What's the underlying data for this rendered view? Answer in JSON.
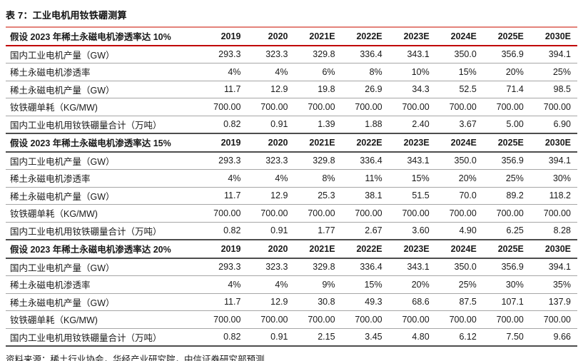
{
  "title": "表 7：工业电机用钕铁硼测算",
  "source": "资料来源：稀土行业协会，华经产业研究院，中信证券研究部预测",
  "columns": [
    "2019",
    "2020",
    "2021E",
    "2022E",
    "2023E",
    "2024E",
    "2025E",
    "2030E"
  ],
  "sections": [
    {
      "header": "假设 2023 年稀土永磁电机渗透率达 10%",
      "rows": [
        {
          "label": "国内工业电机产量（GW）",
          "values": [
            "293.3",
            "323.3",
            "329.8",
            "336.4",
            "343.1",
            "350.0",
            "356.9",
            "394.1"
          ]
        },
        {
          "label": "稀土永磁电机渗透率",
          "values": [
            "4%",
            "4%",
            "6%",
            "8%",
            "10%",
            "15%",
            "20%",
            "25%"
          ]
        },
        {
          "label": "稀土永磁电机产量（GW）",
          "values": [
            "11.7",
            "12.9",
            "19.8",
            "26.9",
            "34.3",
            "52.5",
            "71.4",
            "98.5"
          ]
        },
        {
          "label": "钕铁硼单耗（KG/MW)",
          "values": [
            "700.00",
            "700.00",
            "700.00",
            "700.00",
            "700.00",
            "700.00",
            "700.00",
            "700.00"
          ]
        },
        {
          "label": "国内工业电机用钕铁硼量合计（万吨）",
          "values": [
            "0.82",
            "0.91",
            "1.39",
            "1.88",
            "2.40",
            "3.67",
            "5.00",
            "6.90"
          ]
        }
      ]
    },
    {
      "header": "假设 2023 年稀土永磁电机渗透率达 15%",
      "rows": [
        {
          "label": "国内工业电机产量（GW）",
          "values": [
            "293.3",
            "323.3",
            "329.8",
            "336.4",
            "343.1",
            "350.0",
            "356.9",
            "394.1"
          ]
        },
        {
          "label": "稀土永磁电机渗透率",
          "values": [
            "4%",
            "4%",
            "8%",
            "11%",
            "15%",
            "20%",
            "25%",
            "30%"
          ]
        },
        {
          "label": "稀土永磁电机产量（GW）",
          "values": [
            "11.7",
            "12.9",
            "25.3",
            "38.1",
            "51.5",
            "70.0",
            "89.2",
            "118.2"
          ]
        },
        {
          "label": "钕铁硼单耗（KG/MW)",
          "values": [
            "700.00",
            "700.00",
            "700.00",
            "700.00",
            "700.00",
            "700.00",
            "700.00",
            "700.00"
          ]
        },
        {
          "label": "国内工业电机用钕铁硼量合计（万吨）",
          "values": [
            "0.82",
            "0.91",
            "1.77",
            "2.67",
            "3.60",
            "4.90",
            "6.25",
            "8.28"
          ]
        }
      ]
    },
    {
      "header": "假设 2023 年稀土永磁电机渗透率达 20%",
      "rows": [
        {
          "label": "国内工业电机产量（GW）",
          "values": [
            "293.3",
            "323.3",
            "329.8",
            "336.4",
            "343.1",
            "350.0",
            "356.9",
            "394.1"
          ]
        },
        {
          "label": "稀土永磁电机渗透率",
          "values": [
            "4%",
            "4%",
            "9%",
            "15%",
            "20%",
            "25%",
            "30%",
            "35%"
          ]
        },
        {
          "label": "稀土永磁电机产量（GW）",
          "values": [
            "11.7",
            "12.9",
            "30.8",
            "49.3",
            "68.6",
            "87.5",
            "107.1",
            "137.9"
          ]
        },
        {
          "label": "钕铁硼单耗（KG/MW)",
          "values": [
            "700.00",
            "700.00",
            "700.00",
            "700.00",
            "700.00",
            "700.00",
            "700.00",
            "700.00"
          ]
        },
        {
          "label": "国内工业电机用钕铁硼量合计（万吨）",
          "values": [
            "0.82",
            "0.91",
            "2.15",
            "3.45",
            "4.80",
            "6.12",
            "7.50",
            "9.66"
          ]
        }
      ]
    }
  ],
  "colors": {
    "table_top_border": "#e4837a",
    "section1_header_line": "#c00000",
    "section_divider_line": "#4d4d4d",
    "row_divider_line": "#a6a6a6",
    "table_bottom_border": "#d0453c",
    "text": "#1a1a1a"
  },
  "chart_data": {
    "type": "table",
    "title": "表 7：工业电机用钕铁硼测算",
    "note": "Three scenarios for rare-earth permanent magnet motor penetration (10% / 15% / 20% by 2023E); columns are years 2019–2030E; rows cover domestic industrial motor output (GW), penetration rate, PM motor output (GW), NdFeB unit consumption (KG/MW), and total NdFeB demand (万吨)."
  }
}
